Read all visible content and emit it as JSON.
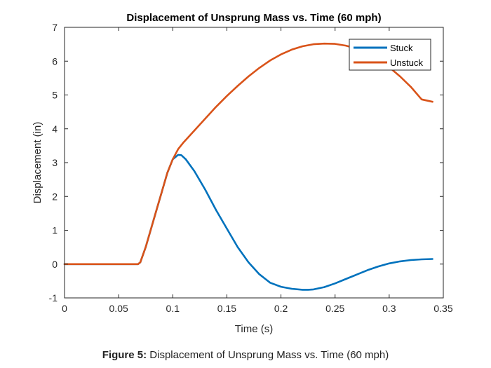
{
  "figure": {
    "caption_label": "Figure 5:",
    "caption_text": " Displacement of Unsprung Mass vs. Time (60 mph)"
  },
  "chart_data": {
    "type": "line",
    "title": "Displacement of Unsprung Mass vs. Time (60 mph)",
    "xlabel": "Time (s)",
    "ylabel": "Displacement (in)",
    "xlim": [
      0,
      0.35
    ],
    "ylim": [
      -1,
      7
    ],
    "xticks": [
      0,
      0.05,
      0.1,
      0.15,
      0.2,
      0.25,
      0.3,
      0.35
    ],
    "xtick_labels": [
      "0",
      "0.05",
      "0.1",
      "0.15",
      "0.2",
      "0.25",
      "0.3",
      "0.35"
    ],
    "yticks": [
      -1,
      0,
      1,
      2,
      3,
      4,
      5,
      6,
      7
    ],
    "ytick_labels": [
      "-1",
      "0",
      "1",
      "2",
      "3",
      "4",
      "5",
      "6",
      "7"
    ],
    "grid": false,
    "legend_position": "top-right",
    "series": [
      {
        "name": "Stuck",
        "color": "#0072BD",
        "x": [
          0,
          0.068,
          0.07,
          0.075,
          0.08,
          0.085,
          0.09,
          0.095,
          0.1,
          0.105,
          0.108,
          0.112,
          0.12,
          0.13,
          0.14,
          0.15,
          0.16,
          0.17,
          0.18,
          0.19,
          0.2,
          0.21,
          0.22,
          0.225,
          0.23,
          0.24,
          0.25,
          0.26,
          0.27,
          0.28,
          0.29,
          0.3,
          0.31,
          0.32,
          0.33,
          0.34
        ],
        "y": [
          0,
          0,
          0.05,
          0.5,
          1.05,
          1.6,
          2.15,
          2.7,
          3.1,
          3.23,
          3.22,
          3.1,
          2.75,
          2.2,
          1.6,
          1.05,
          0.5,
          0.05,
          -0.3,
          -0.55,
          -0.67,
          -0.73,
          -0.76,
          -0.76,
          -0.75,
          -0.68,
          -0.57,
          -0.44,
          -0.31,
          -0.18,
          -0.07,
          0.02,
          0.08,
          0.12,
          0.14,
          0.15
        ]
      },
      {
        "name": "Unstuck",
        "color": "#D95319",
        "x": [
          0,
          0.068,
          0.07,
          0.075,
          0.08,
          0.085,
          0.09,
          0.095,
          0.1,
          0.105,
          0.11,
          0.12,
          0.13,
          0.14,
          0.15,
          0.16,
          0.17,
          0.18,
          0.19,
          0.2,
          0.21,
          0.22,
          0.23,
          0.24,
          0.25,
          0.26,
          0.27,
          0.28,
          0.29,
          0.3,
          0.31,
          0.32,
          0.33,
          0.34
        ],
        "y": [
          0,
          0,
          0.05,
          0.5,
          1.05,
          1.6,
          2.15,
          2.7,
          3.1,
          3.4,
          3.6,
          3.95,
          4.3,
          4.65,
          4.97,
          5.27,
          5.55,
          5.8,
          6.02,
          6.2,
          6.34,
          6.44,
          6.5,
          6.52,
          6.51,
          6.46,
          6.37,
          6.23,
          6.05,
          5.82,
          5.55,
          5.24,
          4.87,
          4.8
        ]
      }
    ]
  }
}
